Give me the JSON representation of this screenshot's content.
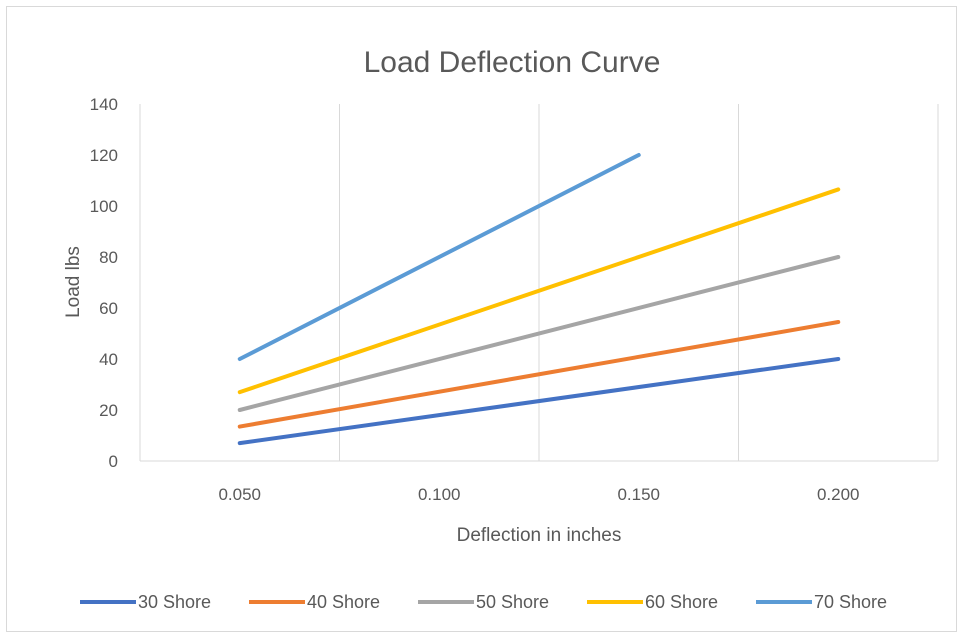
{
  "chart_data": {
    "type": "line",
    "title": "Load Deflection Curve",
    "xlabel": "Deflection in inches",
    "ylabel": "Load lbs",
    "x_ticks": [
      "0.050",
      "0.100",
      "0.150",
      "0.200"
    ],
    "xlim": [
      0.025,
      0.225
    ],
    "ylim": [
      0,
      140
    ],
    "y_ticks": [
      0,
      20,
      40,
      60,
      80,
      100,
      120,
      140
    ],
    "grid": "vertical",
    "legend_position": "bottom",
    "series": [
      {
        "name": "30 Shore",
        "color": "#4472c4",
        "x": [
          0.05,
          0.2
        ],
        "y": [
          7,
          40
        ]
      },
      {
        "name": "40 Shore",
        "color": "#ed7d31",
        "x": [
          0.05,
          0.2
        ],
        "y": [
          13.5,
          54.5
        ]
      },
      {
        "name": "50 Shore",
        "color": "#a5a5a5",
        "x": [
          0.05,
          0.2
        ],
        "y": [
          20,
          80
        ]
      },
      {
        "name": "60 Shore",
        "color": "#ffc000",
        "x": [
          0.05,
          0.2
        ],
        "y": [
          27,
          106.5
        ]
      },
      {
        "name": "70 Shore",
        "color": "#5b9bd5",
        "x": [
          0.05,
          0.15
        ],
        "y": [
          40,
          120
        ]
      }
    ]
  }
}
